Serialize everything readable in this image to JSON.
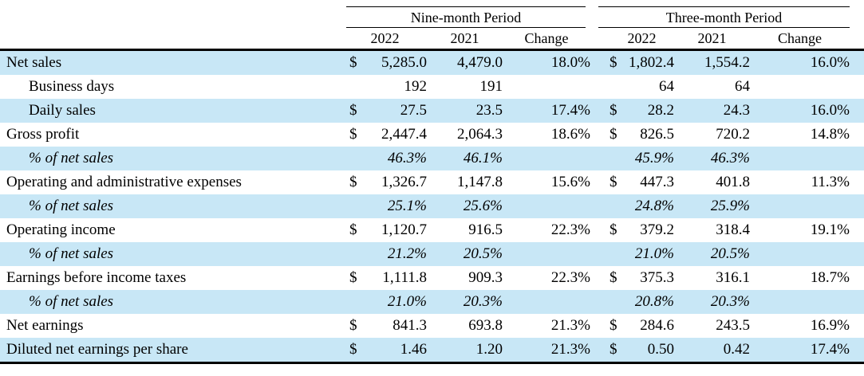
{
  "table": {
    "highlight_color": "#c8e7f6",
    "groups": [
      {
        "label": "Nine-month Period"
      },
      {
        "label": "Three-month Period"
      }
    ],
    "col_headers": [
      "2022",
      "2021",
      "Change",
      "2022",
      "2021",
      "Change"
    ],
    "rows": [
      {
        "label": "Net sales",
        "indent": false,
        "italic": false,
        "highlight": true,
        "cells": [
          {
            "prefix": "$",
            "value": "5,285.0"
          },
          {
            "value": "4,479.0"
          },
          {
            "value": "18.0%"
          },
          {
            "prefix": "$",
            "value": "1,802.4"
          },
          {
            "value": "1,554.2"
          },
          {
            "value": "16.0%"
          }
        ]
      },
      {
        "label": "Business days",
        "indent": true,
        "italic": false,
        "highlight": false,
        "cells": [
          {
            "value": "192"
          },
          {
            "value": "191"
          },
          {
            "value": ""
          },
          {
            "value": "64"
          },
          {
            "value": "64"
          },
          {
            "value": ""
          }
        ]
      },
      {
        "label": "Daily sales",
        "indent": true,
        "italic": false,
        "highlight": true,
        "cells": [
          {
            "prefix": "$",
            "value": "27.5"
          },
          {
            "value": "23.5"
          },
          {
            "value": "17.4%"
          },
          {
            "prefix": "$",
            "value": "28.2"
          },
          {
            "value": "24.3"
          },
          {
            "value": "16.0%"
          }
        ]
      },
      {
        "label": "Gross profit",
        "indent": false,
        "italic": false,
        "highlight": false,
        "cells": [
          {
            "prefix": "$",
            "value": "2,447.4"
          },
          {
            "value": "2,064.3"
          },
          {
            "value": "18.6%"
          },
          {
            "prefix": "$",
            "value": "826.5"
          },
          {
            "value": "720.2"
          },
          {
            "value": "14.8%"
          }
        ]
      },
      {
        "label": "% of net sales",
        "indent": true,
        "italic": true,
        "highlight": true,
        "cells": [
          {
            "value": "46.3%"
          },
          {
            "value": "46.1%"
          },
          {
            "value": ""
          },
          {
            "value": "45.9%"
          },
          {
            "value": "46.3%"
          },
          {
            "value": ""
          }
        ]
      },
      {
        "label": "Operating and administrative expenses",
        "indent": false,
        "italic": false,
        "highlight": false,
        "cells": [
          {
            "prefix": "$",
            "value": "1,326.7"
          },
          {
            "value": "1,147.8"
          },
          {
            "value": "15.6%"
          },
          {
            "prefix": "$",
            "value": "447.3"
          },
          {
            "value": "401.8"
          },
          {
            "value": "11.3%"
          }
        ]
      },
      {
        "label": "% of net sales",
        "indent": true,
        "italic": true,
        "highlight": true,
        "cells": [
          {
            "value": "25.1%"
          },
          {
            "value": "25.6%"
          },
          {
            "value": ""
          },
          {
            "value": "24.8%"
          },
          {
            "value": "25.9%"
          },
          {
            "value": ""
          }
        ]
      },
      {
        "label": "Operating income",
        "indent": false,
        "italic": false,
        "highlight": false,
        "cells": [
          {
            "prefix": "$",
            "value": "1,120.7"
          },
          {
            "value": "916.5"
          },
          {
            "value": "22.3%"
          },
          {
            "prefix": "$",
            "value": "379.2"
          },
          {
            "value": "318.4"
          },
          {
            "value": "19.1%"
          }
        ]
      },
      {
        "label": "% of net sales",
        "indent": true,
        "italic": true,
        "highlight": true,
        "cells": [
          {
            "value": "21.2%"
          },
          {
            "value": "20.5%"
          },
          {
            "value": ""
          },
          {
            "value": "21.0%"
          },
          {
            "value": "20.5%"
          },
          {
            "value": ""
          }
        ]
      },
      {
        "label": "Earnings before income taxes",
        "indent": false,
        "italic": false,
        "highlight": false,
        "cells": [
          {
            "prefix": "$",
            "value": "1,111.8"
          },
          {
            "value": "909.3"
          },
          {
            "value": "22.3%"
          },
          {
            "prefix": "$",
            "value": "375.3"
          },
          {
            "value": "316.1"
          },
          {
            "value": "18.7%"
          }
        ]
      },
      {
        "label": "% of net sales",
        "indent": true,
        "italic": true,
        "highlight": true,
        "cells": [
          {
            "value": "21.0%"
          },
          {
            "value": "20.3%"
          },
          {
            "value": ""
          },
          {
            "value": "20.8%"
          },
          {
            "value": "20.3%"
          },
          {
            "value": ""
          }
        ]
      },
      {
        "label": "Net earnings",
        "indent": false,
        "italic": false,
        "highlight": false,
        "cells": [
          {
            "prefix": "$",
            "value": "841.3"
          },
          {
            "value": "693.8"
          },
          {
            "value": "21.3%"
          },
          {
            "prefix": "$",
            "value": "284.6"
          },
          {
            "value": "243.5"
          },
          {
            "value": "16.9%"
          }
        ]
      },
      {
        "label": "Diluted net earnings per share",
        "indent": false,
        "italic": false,
        "highlight": true,
        "cells": [
          {
            "prefix": "$",
            "value": "1.46"
          },
          {
            "value": "1.20"
          },
          {
            "value": "21.3%"
          },
          {
            "prefix": "$",
            "value": "0.50"
          },
          {
            "value": "0.42"
          },
          {
            "value": "17.4%"
          }
        ]
      }
    ]
  }
}
